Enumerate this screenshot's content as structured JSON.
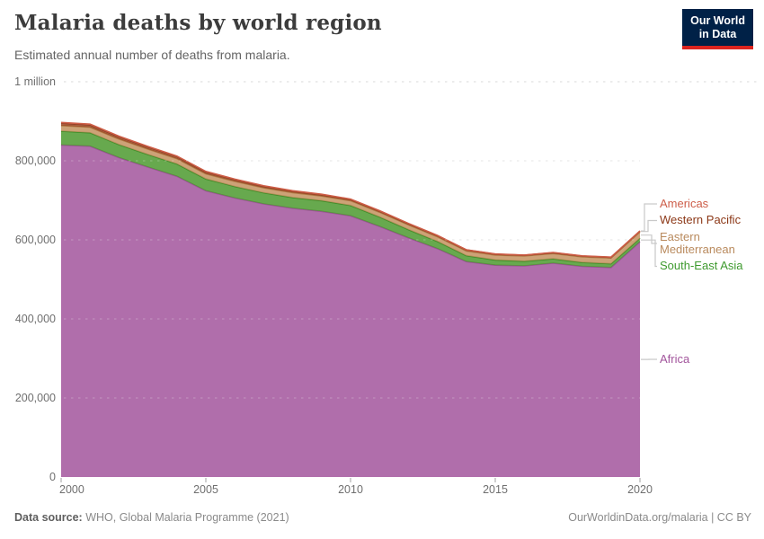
{
  "header": {
    "title": "Malaria deaths by world region",
    "subtitle": "Estimated annual number of deaths from malaria.",
    "logo": {
      "line1": "Our World",
      "line2": "in Data",
      "bg": "#002147",
      "bar_color": "#dc241f"
    }
  },
  "chart_data": {
    "type": "area",
    "stacked": true,
    "title": "Malaria deaths by world region",
    "xlabel": "",
    "ylabel": "",
    "xlim": [
      2000,
      2020
    ],
    "ylim": [
      0,
      1000000
    ],
    "grid": "dashed-horizontal",
    "legend_position": "right-labels",
    "x": [
      2000,
      2001,
      2002,
      2003,
      2004,
      2005,
      2006,
      2007,
      2008,
      2009,
      2010,
      2011,
      2012,
      2013,
      2014,
      2015,
      2016,
      2017,
      2018,
      2019,
      2020
    ],
    "x_ticks": [
      {
        "year": 2000,
        "label": "2000"
      },
      {
        "year": 2005,
        "label": "2005"
      },
      {
        "year": 2010,
        "label": "2010"
      },
      {
        "year": 2015,
        "label": "2015"
      },
      {
        "year": 2020,
        "label": "2020"
      }
    ],
    "y_ticks": [
      {
        "value": 0,
        "label": "0"
      },
      {
        "value": 200000,
        "label": "200,000"
      },
      {
        "value": 400000,
        "label": "400,000"
      },
      {
        "value": 600000,
        "label": "600,000"
      },
      {
        "value": 800000,
        "label": "800,000"
      },
      {
        "value": 1000000,
        "label": "1 million"
      }
    ],
    "series": [
      {
        "name": "Africa",
        "fill": "#a2559c",
        "stroke": "#9c5295",
        "label_color": "#a2559c",
        "values": [
          840000,
          837000,
          808000,
          784000,
          761000,
          724000,
          706000,
          691000,
          680000,
          672000,
          661000,
          634000,
          605000,
          578000,
          545000,
          536000,
          534000,
          541000,
          533000,
          530000,
          595000
        ]
      },
      {
        "name": "South-East Asia",
        "fill": "#4c9a2f",
        "stroke": "#3f8c28",
        "label_color": "#3e9a2e",
        "values": [
          35000,
          34000,
          33000,
          32000,
          31000,
          30000,
          29000,
          28000,
          27000,
          27000,
          26000,
          24000,
          21000,
          18000,
          15000,
          13000,
          12000,
          11000,
          10000,
          9500,
          9000
        ]
      },
      {
        "name": "Eastern Mediterranean",
        "fill": "#c4925f",
        "stroke": "#b07c46",
        "label_color": "#b98a5d",
        "values": [
          14000,
          14000,
          14000,
          13500,
          13500,
          13000,
          13000,
          12500,
          12500,
          12000,
          12000,
          12000,
          12000,
          12000,
          12000,
          12500,
          13000,
          13500,
          14000,
          14500,
          16000
        ]
      },
      {
        "name": "Western Pacific",
        "fill": "#9a4522",
        "stroke": "#8c3a1e",
        "label_color": "#8c3817",
        "values": [
          6300,
          6000,
          5700,
          5400,
          5100,
          4800,
          4500,
          4200,
          3900,
          3600,
          3300,
          3100,
          2900,
          2700,
          2500,
          2300,
          2200,
          2100,
          2000,
          2000,
          2200
        ]
      },
      {
        "name": "Americas",
        "fill": "#d86a52",
        "stroke": "#cd5d46",
        "label_color": "#cd5e49",
        "values": [
          1800,
          1700,
          1600,
          1500,
          1400,
          1300,
          1200,
          1100,
          1000,
          900,
          800,
          800,
          700,
          700,
          600,
          600,
          500,
          500,
          500,
          400,
          400
        ]
      }
    ]
  },
  "footer": {
    "source_label": "Data source:",
    "source": "WHO, Global Malaria Programme (2021)",
    "right": "OurWorldinData.org/malaria | CC BY"
  }
}
